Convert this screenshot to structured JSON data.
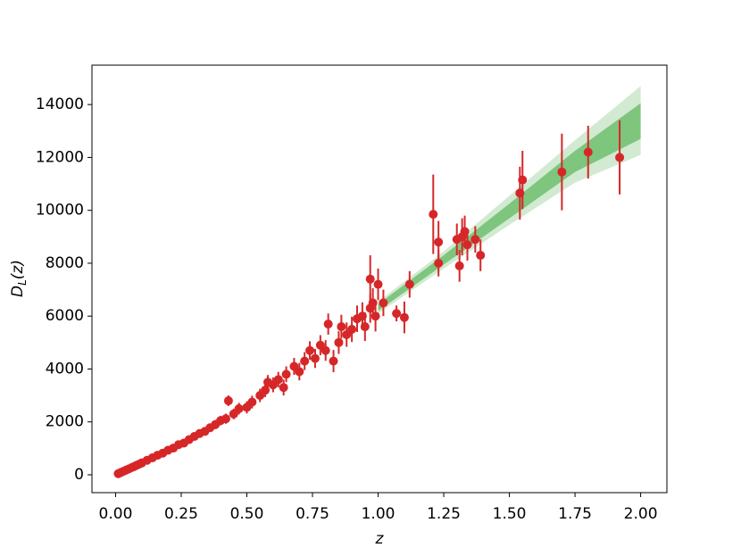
{
  "chart_data": {
    "type": "scatter",
    "xlabel": "z",
    "ylabel": "D_L(z)",
    "xlim": [
      -0.09,
      2.1
    ],
    "ylim": [
      -675,
      15490
    ],
    "xticks": [
      {
        "value": 0,
        "label": "0.00"
      },
      {
        "value": 0.25,
        "label": "0.25"
      },
      {
        "value": 0.5,
        "label": "0.50"
      },
      {
        "value": 0.75,
        "label": "0.75"
      },
      {
        "value": 1,
        "label": "1.00"
      },
      {
        "value": 1.25,
        "label": "1.25"
      },
      {
        "value": 1.5,
        "label": "1.50"
      },
      {
        "value": 1.75,
        "label": "1.75"
      },
      {
        "value": 2,
        "label": "2.00"
      }
    ],
    "yticks": [
      0,
      2000,
      4000,
      6000,
      8000,
      10000,
      12000,
      14000
    ],
    "bands": [
      {
        "color": "#2ca02c",
        "opacity": 0.22,
        "x": [
          1.0,
          1.25,
          1.5,
          1.75,
          2.0
        ],
        "lower": [
          6100,
          7800,
          9450,
          11050,
          12100
        ],
        "upper": [
          6550,
          8450,
          10550,
          12650,
          14700
        ]
      },
      {
        "color": "#2ca02c",
        "opacity": 0.5,
        "x": [
          1.0,
          1.25,
          1.5,
          1.75,
          2.0
        ],
        "lower": [
          6200,
          7950,
          9700,
          11450,
          12700
        ],
        "upper": [
          6450,
          8300,
          10250,
          12250,
          14050
        ]
      }
    ],
    "series": [
      {
        "color": "#d62728",
        "x": [
          0.01,
          0.015,
          0.02,
          0.03,
          0.04,
          0.05,
          0.06,
          0.07,
          0.08,
          0.09,
          0.1,
          0.12,
          0.14,
          0.16,
          0.18,
          0.2,
          0.22,
          0.24,
          0.26,
          0.28,
          0.3,
          0.32,
          0.34,
          0.36,
          0.38,
          0.4,
          0.42,
          0.43,
          0.45,
          0.47,
          0.5,
          0.52,
          0.55,
          0.57,
          0.58,
          0.6,
          0.62,
          0.64,
          0.65,
          0.68,
          0.7,
          0.72,
          0.74,
          0.76,
          0.78,
          0.8,
          0.81,
          0.83,
          0.85,
          0.86,
          0.88,
          0.9,
          0.92,
          0.94,
          0.95,
          0.97,
          0.98,
          0.99,
          1.02,
          0.97,
          1.0,
          1.07,
          1.1,
          1.12,
          1.21,
          1.23,
          1.23,
          1.3,
          1.31,
          1.32,
          1.33,
          1.34,
          1.37,
          1.39,
          1.54,
          1.55,
          1.7,
          1.8,
          1.92
        ],
        "values": [
          43,
          65,
          87,
          131,
          178,
          220,
          265,
          310,
          360,
          400,
          450,
          550,
          640,
          740,
          820,
          930,
          1010,
          1140,
          1200,
          1330,
          1450,
          1560,
          1640,
          1780,
          1900,
          2050,
          2120,
          2800,
          2300,
          2500,
          2550,
          2750,
          3000,
          3200,
          3500,
          3400,
          3600,
          3300,
          3800,
          4100,
          3900,
          4300,
          4700,
          4400,
          4900,
          4700,
          5700,
          4300,
          5000,
          5600,
          5300,
          5500,
          5900,
          6000,
          5600,
          6300,
          6500,
          6000,
          6500,
          7400,
          7200,
          6100,
          5950,
          7200,
          9850,
          8800,
          8000,
          8900,
          7900,
          9000,
          9200,
          8700,
          8900,
          8300,
          10650,
          11150,
          11450,
          12200,
          12000
        ],
        "errors": [
          15,
          15,
          20,
          25,
          30,
          35,
          35,
          40,
          45,
          50,
          50,
          60,
          70,
          80,
          90,
          100,
          100,
          110,
          120,
          130,
          140,
          150,
          150,
          160,
          170,
          180,
          190,
          200,
          200,
          220,
          230,
          240,
          250,
          260,
          270,
          280,
          290,
          300,
          300,
          320,
          330,
          340,
          350,
          360,
          380,
          390,
          400,
          420,
          430,
          450,
          460,
          480,
          500,
          520,
          540,
          550,
          560,
          580,
          500,
          900,
          600,
          300,
          600,
          500,
          1500,
          800,
          500,
          600,
          600,
          700,
          600,
          600,
          500,
          600,
          1000,
          1100,
          1450,
          1000,
          1400
        ]
      }
    ]
  }
}
